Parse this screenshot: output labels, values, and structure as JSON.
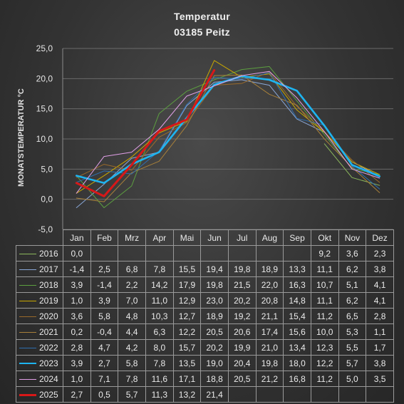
{
  "chart_data": {
    "type": "line",
    "title": "Temperatur",
    "subtitle": "03185  Peitz",
    "ylabel": "MONATSTEMPERATUR °C",
    "xlabel": "",
    "ylim": [
      -5,
      25
    ],
    "yticks": [
      "-5,0",
      "0,0",
      "5,0",
      "10,0",
      "15,0",
      "20,0",
      "25,0"
    ],
    "grid": true,
    "legend": "table-below",
    "categories": [
      "Jan",
      "Feb",
      "Mrz",
      "Apr",
      "Mai",
      "Jun",
      "Jul",
      "Aug",
      "Sep",
      "Okt",
      "Nov",
      "Dez"
    ],
    "series": [
      {
        "name": "2016",
        "color": "#8cb85c",
        "width": 1,
        "values": [
          0.0,
          null,
          null,
          null,
          null,
          null,
          null,
          null,
          null,
          9.2,
          3.6,
          2.3
        ],
        "labels": [
          "0,0",
          "",
          "",
          "",
          "",
          "",
          "",
          "",
          "",
          "9,2",
          "3,6",
          "2,3"
        ]
      },
      {
        "name": "2017",
        "color": "#8aa8d8",
        "width": 1,
        "values": [
          -1.4,
          2.5,
          6.8,
          7.8,
          15.5,
          19.4,
          19.8,
          18.9,
          13.3,
          11.1,
          6.2,
          3.8
        ],
        "labels": [
          "-1,4",
          "2,5",
          "6,8",
          "7,8",
          "15,5",
          "19,4",
          "19,8",
          "18,9",
          "13,3",
          "11,1",
          "6,2",
          "3,8"
        ]
      },
      {
        "name": "2018",
        "color": "#5da040",
        "width": 1,
        "values": [
          3.9,
          -1.4,
          2.2,
          14.2,
          17.9,
          19.8,
          21.5,
          22.0,
          16.3,
          10.7,
          5.1,
          4.1
        ],
        "labels": [
          "3,9",
          "-1,4",
          "2,2",
          "14,2",
          "17,9",
          "19,8",
          "21,5",
          "22,0",
          "16,3",
          "10,7",
          "5,1",
          "4,1"
        ]
      },
      {
        "name": "2019",
        "color": "#c9a800",
        "width": 1,
        "values": [
          1.0,
          3.9,
          7.0,
          11.0,
          12.9,
          23.0,
          20.2,
          20.8,
          14.8,
          11.1,
          6.2,
          4.1
        ],
        "labels": [
          "1,0",
          "3,9",
          "7,0",
          "11,0",
          "12,9",
          "23,0",
          "20,2",
          "20,8",
          "14,8",
          "11,1",
          "6,2",
          "4,1"
        ]
      },
      {
        "name": "2020",
        "color": "#9a6a2a",
        "width": 1,
        "values": [
          3.6,
          5.8,
          4.8,
          10.3,
          12.7,
          18.9,
          19.2,
          21.1,
          15.4,
          11.2,
          6.5,
          2.8
        ],
        "labels": [
          "3,6",
          "5,8",
          "4,8",
          "10,3",
          "12,7",
          "18,9",
          "19,2",
          "21,1",
          "15,4",
          "11,2",
          "6,5",
          "2,8"
        ]
      },
      {
        "name": "2021",
        "color": "#a8803a",
        "width": 1,
        "values": [
          0.2,
          -0.4,
          4.4,
          6.3,
          12.2,
          20.5,
          20.6,
          17.4,
          15.6,
          10.0,
          5.3,
          1.1
        ],
        "labels": [
          "0,2",
          "-0,4",
          "4,4",
          "6,3",
          "12,2",
          "20,5",
          "20,6",
          "17,4",
          "15,6",
          "10,0",
          "5,3",
          "1,1"
        ]
      },
      {
        "name": "2022",
        "color": "#2f6fb0",
        "width": 1,
        "values": [
          2.8,
          4.7,
          4.2,
          8.0,
          15.7,
          20.2,
          19.9,
          21.0,
          13.4,
          12.3,
          5.5,
          1.7
        ],
        "labels": [
          "2,8",
          "4,7",
          "4,2",
          "8,0",
          "15,7",
          "20,2",
          "19,9",
          "21,0",
          "13,4",
          "12,3",
          "5,5",
          "1,7"
        ]
      },
      {
        "name": "2023",
        "color": "#1eb4f0",
        "width": 2.6,
        "values": [
          3.9,
          2.7,
          5.8,
          7.8,
          13.5,
          19.0,
          20.4,
          19.8,
          18.0,
          12.2,
          5.7,
          3.8
        ],
        "labels": [
          "3,9",
          "2,7",
          "5,8",
          "7,8",
          "13,5",
          "19,0",
          "20,4",
          "19,8",
          "18,0",
          "12,2",
          "5,7",
          "3,8"
        ]
      },
      {
        "name": "2024",
        "color": "#e2a0e8",
        "width": 1,
        "values": [
          1.0,
          7.1,
          7.8,
          11.6,
          17.1,
          18.8,
          20.5,
          21.2,
          16.8,
          11.2,
          5.0,
          3.5
        ],
        "labels": [
          "1,0",
          "7,1",
          "7,8",
          "11,6",
          "17,1",
          "18,8",
          "20,5",
          "21,2",
          "16,8",
          "11,2",
          "5,0",
          "3,5"
        ]
      },
      {
        "name": "2025",
        "color": "#d81818",
        "width": 3,
        "values": [
          2.7,
          0.5,
          5.7,
          11.3,
          13.2,
          21.4,
          null,
          null,
          null,
          null,
          null,
          null
        ],
        "labels": [
          "2,7",
          "0,5",
          "5,7",
          "11,3",
          "13,2",
          "21,4",
          "",
          "",
          "",
          "",
          "",
          ""
        ]
      }
    ]
  }
}
